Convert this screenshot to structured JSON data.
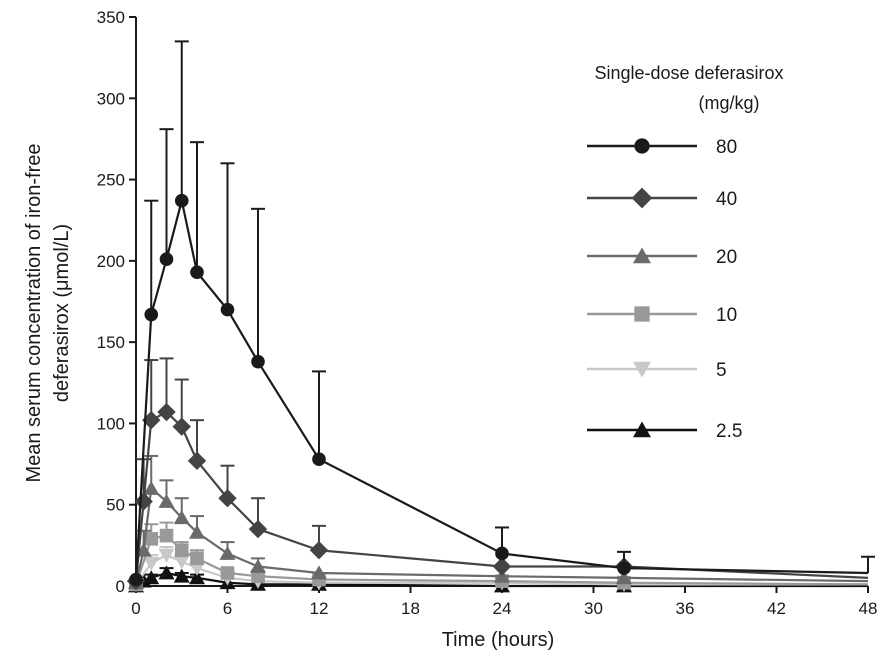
{
  "chart_data": {
    "type": "line",
    "xlabel": "Time (hours)",
    "ylabel_lines": [
      "Mean serum concentration of iron-free",
      "deferasirox (μmol/L)"
    ],
    "xlim": [
      0,
      48
    ],
    "ylim": [
      0,
      350
    ],
    "x_ticks": [
      0,
      6,
      12,
      18,
      24,
      30,
      36,
      42,
      48
    ],
    "y_ticks": [
      0,
      50,
      100,
      150,
      200,
      250,
      300,
      350
    ],
    "grid": false,
    "legend": {
      "position": "right",
      "title_line1": "Single-dose deferasirox",
      "title_line2": "(mg/kg)"
    },
    "series": [
      {
        "name": "80",
        "color": "#1a1a1a",
        "marker": "circle",
        "x": [
          0,
          1,
          2,
          3,
          4,
          6,
          8,
          12,
          24,
          32,
          48
        ],
        "y": [
          4,
          167,
          201,
          237,
          193,
          170,
          138,
          78,
          20,
          11,
          8
        ],
        "err": [
          0,
          70,
          80,
          98,
          80,
          90,
          94,
          54,
          16,
          10,
          10
        ]
      },
      {
        "name": "40",
        "color": "#444444",
        "marker": "diamond",
        "x": [
          0,
          0.5,
          1,
          2,
          3,
          4,
          6,
          8,
          12,
          24,
          32,
          48
        ],
        "y": [
          3,
          52,
          102,
          107,
          98,
          77,
          54,
          35,
          22,
          12,
          12,
          5
        ],
        "err": [
          0,
          26,
          37,
          33,
          29,
          25,
          20,
          19,
          15,
          0,
          0,
          0
        ]
      },
      {
        "name": "20",
        "color": "#6a6a6a",
        "marker": "triangle",
        "x": [
          0,
          0.5,
          1,
          2,
          3,
          4,
          6,
          8,
          12,
          24,
          32,
          48
        ],
        "y": [
          2,
          22,
          60,
          52,
          42,
          33,
          20,
          12,
          8,
          6,
          5,
          3
        ],
        "err": [
          0,
          12,
          20,
          13,
          12,
          10,
          7,
          5,
          0,
          0,
          0,
          0
        ]
      },
      {
        "name": "10",
        "color": "#999999",
        "marker": "square",
        "x": [
          0,
          1,
          2,
          3,
          4,
          6,
          8,
          12,
          24,
          32,
          48
        ],
        "y": [
          1,
          29,
          31,
          22,
          17,
          8,
          6,
          4,
          3,
          2,
          1
        ],
        "err": [
          0,
          9,
          8,
          5,
          5,
          0,
          0,
          0,
          0,
          0,
          0
        ]
      },
      {
        "name": "5",
        "color": "#c8c8c8",
        "marker": "triangle-down",
        "x": [
          0,
          1,
          2,
          3,
          4,
          6,
          8,
          12,
          24,
          32,
          48
        ],
        "y": [
          1,
          14,
          19,
          15,
          11,
          5,
          3,
          2,
          2,
          1,
          1
        ],
        "err": [
          0,
          5,
          5,
          4,
          3,
          0,
          0,
          0,
          0,
          0,
          0
        ]
      },
      {
        "name": "2.5",
        "color": "#111111",
        "marker": "triangle",
        "x": [
          0,
          0.5,
          1,
          2,
          3,
          4,
          6,
          8,
          12,
          24,
          32,
          48
        ],
        "y": [
          0,
          3,
          5,
          8,
          6,
          5,
          2,
          1,
          1,
          0,
          0,
          0
        ],
        "err": [
          0,
          0,
          2,
          3,
          2,
          2,
          0,
          0,
          0,
          0,
          0,
          0
        ]
      }
    ]
  }
}
